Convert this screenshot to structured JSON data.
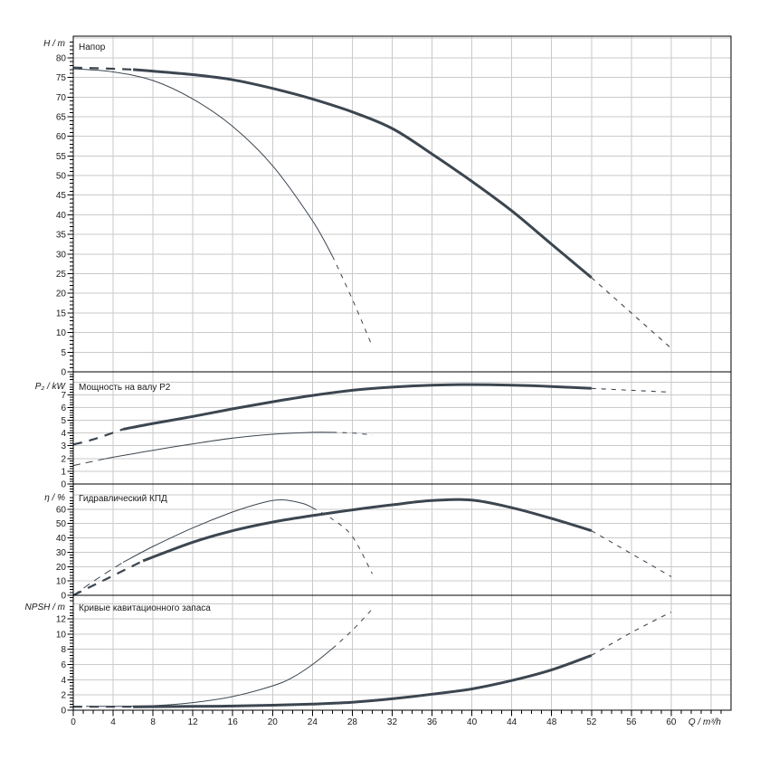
{
  "colors": {
    "curve": "#3c4650",
    "grid": "#cacaca",
    "axis": "#000000",
    "text": "#1a1a1a",
    "background": "#ffffff"
  },
  "chart_data": {
    "type": "line",
    "x_axis": {
      "label": "Q / m³/h",
      "min": 0,
      "max": 66,
      "major_tick": 4,
      "minor_tick": 1,
      "tick_labels": [
        "0",
        "4",
        "8",
        "12",
        "16",
        "20",
        "24",
        "28",
        "32",
        "36",
        "40",
        "44",
        "48",
        "52",
        "56",
        "60"
      ]
    },
    "panels": [
      {
        "id": "head",
        "title": "Напор",
        "y_label": "H / m",
        "y_max": 85.5,
        "major_tick": 5,
        "minor_tick": 1,
        "tick_labels": [
          "0",
          "5",
          "10",
          "15",
          "20",
          "25",
          "30",
          "35",
          "40",
          "45",
          "50",
          "55",
          "60",
          "65",
          "70",
          "75",
          "80"
        ],
        "series": [
          {
            "name": "head-main",
            "weight": "thick",
            "solid_from": 6,
            "solid_to": 52,
            "points": [
              [
                0,
                77.5
              ],
              [
                4,
                77.2
              ],
              [
                6,
                77
              ],
              [
                8,
                76.6
              ],
              [
                12,
                75.7
              ],
              [
                16,
                74.4
              ],
              [
                20,
                72.2
              ],
              [
                24,
                69.5
              ],
              [
                28,
                66.2
              ],
              [
                32,
                62
              ],
              [
                36,
                55.5
              ],
              [
                40,
                48.5
              ],
              [
                44,
                41
              ],
              [
                48,
                32.5
              ],
              [
                52,
                24
              ],
              [
                56,
                15
              ],
              [
                60,
                6
              ]
            ]
          },
          {
            "name": "head-reduced",
            "weight": "thin",
            "solid_from": 0,
            "solid_to": 26,
            "points": [
              [
                0,
                77.2
              ],
              [
                4,
                76.4
              ],
              [
                8,
                74.2
              ],
              [
                12,
                69.5
              ],
              [
                16,
                62.5
              ],
              [
                20,
                52.5
              ],
              [
                24,
                38.5
              ],
              [
                26,
                29.5
              ],
              [
                28,
                18.5
              ],
              [
                30,
                6.5
              ]
            ]
          }
        ]
      },
      {
        "id": "power",
        "title": "Мощность на валу P2",
        "y_label": "P₂ / kW",
        "y_max": 8.8,
        "major_tick": 1,
        "minor_tick": 0.2,
        "tick_labels": [
          "0",
          "1",
          "2",
          "3",
          "4",
          "5",
          "6",
          "7"
        ],
        "series": [
          {
            "name": "power-main",
            "weight": "thick",
            "solid_from": 5,
            "solid_to": 52,
            "points": [
              [
                0,
                3.1
              ],
              [
                2,
                3.5
              ],
              [
                5,
                4.3
              ],
              [
                8,
                4.75
              ],
              [
                12,
                5.3
              ],
              [
                16,
                5.9
              ],
              [
                20,
                6.45
              ],
              [
                24,
                6.95
              ],
              [
                28,
                7.35
              ],
              [
                32,
                7.6
              ],
              [
                36,
                7.75
              ],
              [
                40,
                7.8
              ],
              [
                44,
                7.75
              ],
              [
                48,
                7.65
              ],
              [
                52,
                7.5
              ],
              [
                56,
                7.35
              ],
              [
                60,
                7.2
              ]
            ]
          },
          {
            "name": "power-reduced",
            "weight": "thin",
            "solid_from": 3,
            "solid_to": 26,
            "points": [
              [
                0,
                1.45
              ],
              [
                3,
                1.95
              ],
              [
                4,
                2.1
              ],
              [
                8,
                2.65
              ],
              [
                12,
                3.15
              ],
              [
                16,
                3.6
              ],
              [
                20,
                3.9
              ],
              [
                24,
                4.05
              ],
              [
                26,
                4.05
              ],
              [
                28,
                4
              ],
              [
                30,
                3.85
              ]
            ]
          }
        ]
      },
      {
        "id": "efficiency",
        "title": "Гидравлический КПД",
        "y_label": "η / %",
        "y_max": 77.5,
        "major_tick": 10,
        "minor_tick": 2,
        "tick_labels": [
          "0",
          "10",
          "20",
          "30",
          "40",
          "50",
          "60"
        ],
        "series": [
          {
            "name": "efficiency-main",
            "weight": "thick",
            "solid_from": 7,
            "solid_to": 52,
            "points": [
              [
                0,
                0
              ],
              [
                3.5,
                12
              ],
              [
                7,
                24
              ],
              [
                12,
                37
              ],
              [
                16,
                45
              ],
              [
                20,
                51
              ],
              [
                24,
                55.5
              ],
              [
                28,
                59.5
              ],
              [
                32,
                63
              ],
              [
                36,
                66
              ],
              [
                40,
                66.3
              ],
              [
                44,
                61
              ],
              [
                48,
                53.5
              ],
              [
                52,
                45
              ],
              [
                56,
                29
              ],
              [
                60,
                13
              ]
            ]
          },
          {
            "name": "efficiency-reduced",
            "weight": "thin",
            "solid_from": 5,
            "solid_to": 24,
            "points": [
              [
                0,
                0
              ],
              [
                2.5,
                12
              ],
              [
                5,
                23
              ],
              [
                8,
                34
              ],
              [
                12,
                47
              ],
              [
                16,
                58
              ],
              [
                19,
                64.5
              ],
              [
                21,
                66.5
              ],
              [
                23,
                64
              ],
              [
                24,
                61
              ],
              [
                26,
                53
              ],
              [
                28,
                41
              ],
              [
                30,
                15
              ]
            ]
          }
        ]
      },
      {
        "id": "npsh",
        "title": "Кривые кавитационного запаса",
        "y_label": "NPSH / m",
        "y_max": 15.1,
        "major_tick": 2,
        "minor_tick": 0.4,
        "tick_labels": [
          "0",
          "2",
          "4",
          "6",
          "8",
          "10",
          "12"
        ],
        "series": [
          {
            "name": "npsh-main",
            "weight": "thick",
            "solid_from": 6,
            "solid_to": 52,
            "points": [
              [
                0,
                0.45
              ],
              [
                4,
                0.45
              ],
              [
                6,
                0.45
              ],
              [
                12,
                0.5
              ],
              [
                16,
                0.55
              ],
              [
                20,
                0.65
              ],
              [
                24,
                0.8
              ],
              [
                28,
                1.05
              ],
              [
                32,
                1.5
              ],
              [
                36,
                2.1
              ],
              [
                40,
                2.8
              ],
              [
                44,
                3.9
              ],
              [
                48,
                5.3
              ],
              [
                52,
                7.2
              ],
              [
                56,
                10.2
              ],
              [
                60,
                12.9
              ]
            ]
          },
          {
            "name": "npsh-reduced",
            "weight": "thin",
            "solid_from": 4,
            "solid_to": 26,
            "points": [
              [
                0,
                0.5
              ],
              [
                4,
                0.5
              ],
              [
                8,
                0.6
              ],
              [
                12,
                1
              ],
              [
                16,
                1.8
              ],
              [
                20,
                3.2
              ],
              [
                22,
                4.3
              ],
              [
                24,
                6
              ],
              [
                26,
                8.1
              ],
              [
                28,
                10.5
              ],
              [
                30,
                13.3
              ]
            ]
          }
        ]
      }
    ]
  }
}
